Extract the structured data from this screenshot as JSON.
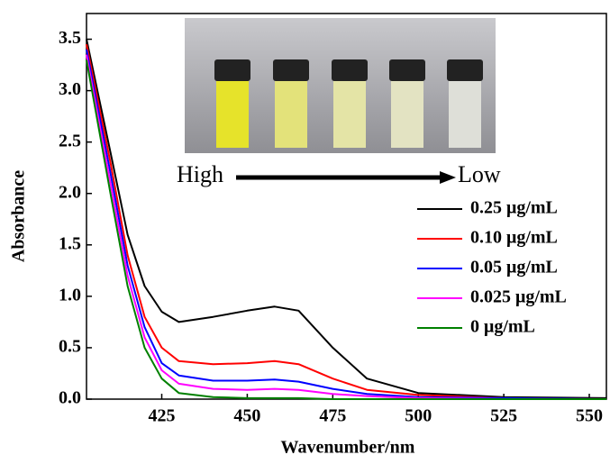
{
  "chart_data": {
    "type": "line",
    "xlabel": "Wavenumber/nm",
    "ylabel": "Absorbance",
    "x": [
      403,
      410,
      415,
      420,
      425,
      430,
      440,
      450,
      458,
      465,
      475,
      485,
      500,
      525,
      555
    ],
    "series": [
      {
        "name": "0.25 μg/mL",
        "color": "#000000",
        "values": [
          3.5,
          2.4,
          1.6,
          1.1,
          0.85,
          0.75,
          0.8,
          0.86,
          0.9,
          0.86,
          0.5,
          0.2,
          0.06,
          0.02,
          0.01
        ]
      },
      {
        "name": "0.10 μg/mL",
        "color": "#ff0000",
        "values": [
          3.45,
          2.3,
          1.4,
          0.8,
          0.5,
          0.37,
          0.34,
          0.35,
          0.37,
          0.34,
          0.2,
          0.09,
          0.04,
          0.01,
          0
        ]
      },
      {
        "name": "0.05 μg/mL",
        "color": "#0000ff",
        "values": [
          3.4,
          2.2,
          1.3,
          0.7,
          0.35,
          0.23,
          0.18,
          0.18,
          0.19,
          0.17,
          0.1,
          0.05,
          0.02,
          0.01,
          0
        ]
      },
      {
        "name": "0.025 μg/mL",
        "color": "#ff00ff",
        "values": [
          3.35,
          2.1,
          1.2,
          0.6,
          0.28,
          0.15,
          0.1,
          0.09,
          0.1,
          0.09,
          0.05,
          0.03,
          0.01,
          0,
          0
        ]
      },
      {
        "name": "0 μg/mL",
        "color": "#008000",
        "values": [
          3.3,
          2.0,
          1.1,
          0.5,
          0.2,
          0.06,
          0.02,
          0.01,
          0.01,
          0.01,
          0,
          0,
          0,
          0,
          0
        ]
      }
    ],
    "xlim": [
      403,
      555
    ],
    "xticks": [
      425,
      450,
      475,
      500,
      525,
      550
    ],
    "ylim": [
      0,
      3.75
    ],
    "yticks": [
      {
        "value": 0,
        "label": "0.0"
      },
      0.5,
      {
        "value": 1,
        "label": "1.0"
      },
      1.5,
      {
        "value": 2,
        "label": "2.0"
      },
      2.5,
      {
        "value": 3,
        "label": "3.0"
      },
      3.5
    ],
    "inset_labels": [
      "High",
      "Low"
    ]
  }
}
